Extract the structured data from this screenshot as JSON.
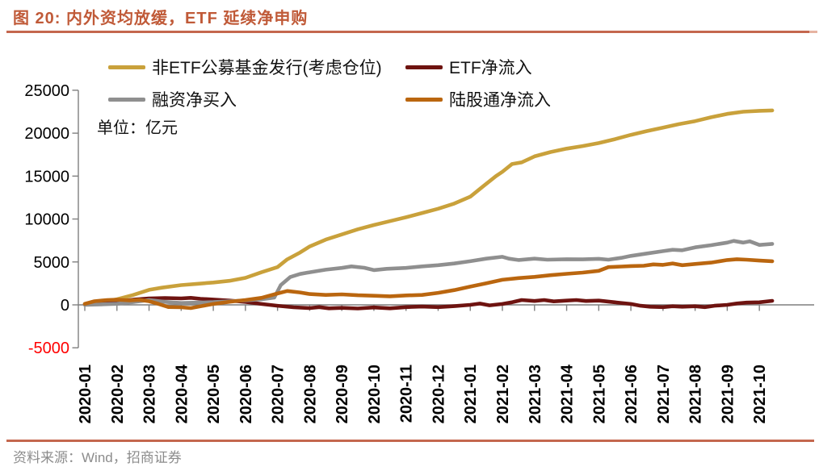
{
  "header": {
    "title": "图 20: 内外资均放缓，ETF 延续净申购"
  },
  "unit_label": "单位：亿元",
  "source": "资料来源：Wind，招商证券",
  "colors": {
    "title_text": "#C05A38",
    "accent_rule": "#C4674E",
    "axis": "#7F7F7F",
    "tick_label": "#000000",
    "negative_tick_label": "#FF0000",
    "source_text": "#8C8C8C"
  },
  "chart_data": {
    "type": "line",
    "title": "图 20: 内外资均放缓，ETF 延续净申购",
    "xlabel": "",
    "ylabel": "亿元",
    "ylim": [
      -5000,
      25000
    ],
    "ytick_step": 5000,
    "yticks": [
      -5000,
      0,
      5000,
      10000,
      15000,
      20000,
      25000
    ],
    "grid": false,
    "legend_position": "top",
    "x_categories": [
      "2020-01",
      "2020-02",
      "2020-03",
      "2020-04",
      "2020-05",
      "2020-06",
      "2020-07",
      "2020-08",
      "2020-09",
      "2020-10",
      "2020-11",
      "2020-12",
      "2021-01",
      "2021-02",
      "2021-03",
      "2021-04",
      "2021-05",
      "2021-06",
      "2021-07",
      "2021-08",
      "2021-09",
      "2021-10"
    ],
    "series": [
      {
        "name": "非ETF公募基金发行(考虑仓位)",
        "color": "#C9A13B",
        "points": [
          [
            0,
            50
          ],
          [
            0.5,
            300
          ],
          [
            1,
            650
          ],
          [
            1.5,
            1150
          ],
          [
            2,
            1750
          ],
          [
            2.4,
            2000
          ],
          [
            3,
            2300
          ],
          [
            3.5,
            2450
          ],
          [
            4,
            2600
          ],
          [
            4.5,
            2800
          ],
          [
            5,
            3150
          ],
          [
            5.5,
            3800
          ],
          [
            6,
            4400
          ],
          [
            6.3,
            5300
          ],
          [
            6.7,
            6100
          ],
          [
            7,
            6800
          ],
          [
            7.5,
            7600
          ],
          [
            8,
            8200
          ],
          [
            8.5,
            8800
          ],
          [
            9,
            9300
          ],
          [
            9.5,
            9750
          ],
          [
            10,
            10200
          ],
          [
            10.5,
            10700
          ],
          [
            11,
            11200
          ],
          [
            11.5,
            11800
          ],
          [
            12,
            12600
          ],
          [
            12.4,
            13800
          ],
          [
            12.8,
            15000
          ],
          [
            13,
            15500
          ],
          [
            13.3,
            16400
          ],
          [
            13.6,
            16600
          ],
          [
            14,
            17300
          ],
          [
            14.5,
            17800
          ],
          [
            15,
            18200
          ],
          [
            15.5,
            18500
          ],
          [
            16,
            18850
          ],
          [
            16.5,
            19300
          ],
          [
            17,
            19800
          ],
          [
            17.5,
            20250
          ],
          [
            18,
            20650
          ],
          [
            18.5,
            21050
          ],
          [
            19,
            21400
          ],
          [
            19.5,
            21850
          ],
          [
            20,
            22250
          ],
          [
            20.5,
            22500
          ],
          [
            21,
            22600
          ],
          [
            21.4,
            22650
          ]
        ]
      },
      {
        "name": "ETF净流入",
        "color": "#6E1310",
        "points": [
          [
            0,
            50
          ],
          [
            0.5,
            200
          ],
          [
            1,
            400
          ],
          [
            1.5,
            600
          ],
          [
            2,
            750
          ],
          [
            2.5,
            800
          ],
          [
            3,
            750
          ],
          [
            3.3,
            820
          ],
          [
            3.6,
            700
          ],
          [
            4,
            620
          ],
          [
            4.5,
            500
          ],
          [
            5,
            350
          ],
          [
            5.5,
            100
          ],
          [
            6,
            -100
          ],
          [
            6.5,
            -280
          ],
          [
            7,
            -380
          ],
          [
            7.3,
            -260
          ],
          [
            7.6,
            -400
          ],
          [
            8,
            -350
          ],
          [
            8.5,
            -420
          ],
          [
            9,
            -300
          ],
          [
            9.5,
            -400
          ],
          [
            10,
            -260
          ],
          [
            10.5,
            -200
          ],
          [
            11,
            -260
          ],
          [
            11.5,
            -150
          ],
          [
            12,
            0
          ],
          [
            12.3,
            150
          ],
          [
            12.6,
            -60
          ],
          [
            13,
            100
          ],
          [
            13.3,
            300
          ],
          [
            13.6,
            560
          ],
          [
            14,
            450
          ],
          [
            14.3,
            560
          ],
          [
            14.6,
            400
          ],
          [
            15,
            500
          ],
          [
            15.3,
            560
          ],
          [
            15.6,
            450
          ],
          [
            16,
            500
          ],
          [
            16.5,
            300
          ],
          [
            17,
            100
          ],
          [
            17.3,
            -100
          ],
          [
            17.6,
            -220
          ],
          [
            18,
            -260
          ],
          [
            18.3,
            -160
          ],
          [
            18.6,
            -220
          ],
          [
            19,
            -160
          ],
          [
            19.3,
            -260
          ],
          [
            19.6,
            -100
          ],
          [
            20,
            0
          ],
          [
            20.3,
            160
          ],
          [
            20.6,
            260
          ],
          [
            21,
            300
          ],
          [
            21.4,
            470
          ]
        ]
      },
      {
        "name": "融资净买入",
        "color": "#8F8F8F",
        "points": [
          [
            0,
            0
          ],
          [
            0.5,
            60
          ],
          [
            1,
            120
          ],
          [
            1.5,
            320
          ],
          [
            2,
            560
          ],
          [
            2.5,
            350
          ],
          [
            3,
            220
          ],
          [
            3.5,
            260
          ],
          [
            4,
            320
          ],
          [
            4.5,
            420
          ],
          [
            5,
            520
          ],
          [
            5.5,
            650
          ],
          [
            5.9,
            850
          ],
          [
            6.1,
            2300
          ],
          [
            6.4,
            3250
          ],
          [
            6.7,
            3600
          ],
          [
            7,
            3800
          ],
          [
            7.5,
            4100
          ],
          [
            8,
            4300
          ],
          [
            8.3,
            4480
          ],
          [
            8.7,
            4320
          ],
          [
            9,
            4050
          ],
          [
            9.4,
            4200
          ],
          [
            10,
            4300
          ],
          [
            10.5,
            4480
          ],
          [
            11,
            4620
          ],
          [
            11.5,
            4820
          ],
          [
            12,
            5080
          ],
          [
            12.5,
            5380
          ],
          [
            13,
            5600
          ],
          [
            13.2,
            5380
          ],
          [
            13.5,
            5220
          ],
          [
            14,
            5380
          ],
          [
            14.4,
            5260
          ],
          [
            15,
            5320
          ],
          [
            15.5,
            5300
          ],
          [
            16,
            5360
          ],
          [
            16.3,
            5260
          ],
          [
            16.7,
            5480
          ],
          [
            17,
            5700
          ],
          [
            17.5,
            5980
          ],
          [
            18,
            6260
          ],
          [
            18.3,
            6420
          ],
          [
            18.6,
            6360
          ],
          [
            19,
            6700
          ],
          [
            19.5,
            6950
          ],
          [
            20,
            7250
          ],
          [
            20.2,
            7450
          ],
          [
            20.5,
            7250
          ],
          [
            20.7,
            7400
          ],
          [
            21,
            6980
          ],
          [
            21.4,
            7100
          ]
        ]
      },
      {
        "name": "陆股通净流入",
        "color": "#BA660F",
        "points": [
          [
            0,
            120
          ],
          [
            0.3,
            420
          ],
          [
            0.7,
            560
          ],
          [
            1,
            600
          ],
          [
            1.4,
            520
          ],
          [
            1.7,
            580
          ],
          [
            2,
            420
          ],
          [
            2.3,
            100
          ],
          [
            2.6,
            -250
          ],
          [
            3,
            -280
          ],
          [
            3.3,
            -380
          ],
          [
            3.6,
            -160
          ],
          [
            4,
            100
          ],
          [
            4.5,
            360
          ],
          [
            5,
            560
          ],
          [
            5.5,
            820
          ],
          [
            6,
            1320
          ],
          [
            6.3,
            1620
          ],
          [
            6.7,
            1450
          ],
          [
            7,
            1260
          ],
          [
            7.5,
            1160
          ],
          [
            8,
            1220
          ],
          [
            8.5,
            1120
          ],
          [
            9,
            1060
          ],
          [
            9.5,
            1000
          ],
          [
            10,
            1100
          ],
          [
            10.5,
            1160
          ],
          [
            11,
            1400
          ],
          [
            11.5,
            1720
          ],
          [
            12,
            2120
          ],
          [
            12.5,
            2520
          ],
          [
            13,
            2920
          ],
          [
            13.5,
            3120
          ],
          [
            14,
            3260
          ],
          [
            14.5,
            3460
          ],
          [
            15,
            3620
          ],
          [
            15.5,
            3760
          ],
          [
            16,
            3960
          ],
          [
            16.3,
            4400
          ],
          [
            16.7,
            4460
          ],
          [
            17,
            4520
          ],
          [
            17.4,
            4560
          ],
          [
            17.7,
            4720
          ],
          [
            18,
            4660
          ],
          [
            18.3,
            4820
          ],
          [
            18.6,
            4620
          ],
          [
            19,
            4760
          ],
          [
            19.5,
            4920
          ],
          [
            20,
            5220
          ],
          [
            20.3,
            5320
          ],
          [
            20.6,
            5260
          ],
          [
            21,
            5160
          ],
          [
            21.4,
            5080
          ]
        ]
      }
    ]
  }
}
